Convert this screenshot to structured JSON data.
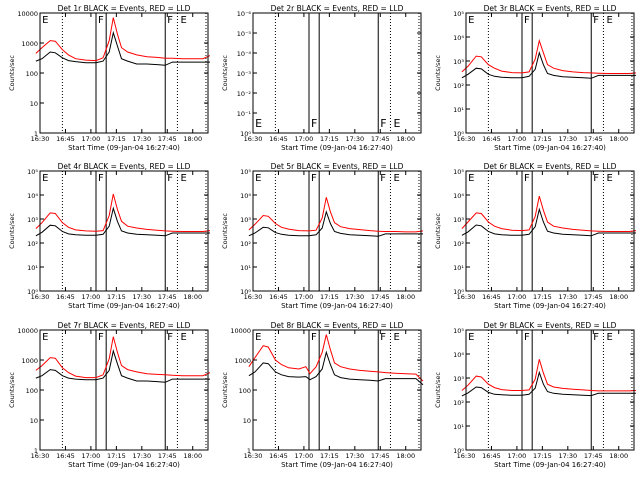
{
  "figure": {
    "xtick_labels": [
      "16:30",
      "16:45",
      "17:00",
      "17:15",
      "17:30",
      "17:45",
      "18:00"
    ],
    "xlabel": "Start Time (09-Jan-04 16:27:40)",
    "ylabel": "Counts/sec",
    "colors": {
      "events": "#000000",
      "lld": "#ff0000"
    },
    "markers": [
      {
        "label": "E",
        "time": 16.511
      },
      {
        "label": "F",
        "time": 17.06
      },
      {
        "label": "F",
        "time": 17.74
      },
      {
        "label": "E",
        "time": 17.87
      }
    ],
    "dotted_lines": [
      16.72,
      17.85,
      18.13
    ],
    "solid_lines": [
      17.05,
      17.15,
      17.73
    ]
  },
  "chart_data": [
    {
      "type": "line",
      "title": "Det 1r BLACK = Events, RED = LLD",
      "ytick_labels": [
        "1",
        "10",
        "100",
        "1000",
        "10000"
      ],
      "ylim": [
        1,
        10000
      ],
      "yscale": "log",
      "x": [
        16.46,
        16.52,
        16.6,
        16.65,
        16.72,
        16.78,
        16.85,
        16.95,
        17.05,
        17.12,
        17.18,
        17.22,
        17.26,
        17.3,
        17.36,
        17.45,
        17.55,
        17.65,
        17.73,
        17.8,
        17.9,
        18.0,
        18.1,
        18.17
      ],
      "series": [
        {
          "name": "LLD",
          "values": [
            450,
            700,
            1200,
            1150,
            600,
            400,
            300,
            270,
            260,
            320,
            1200,
            7000,
            2000,
            700,
            500,
            400,
            350,
            330,
            310,
            310,
            300,
            300,
            300,
            380
          ]
        },
        {
          "name": "Events",
          "values": [
            250,
            300,
            500,
            470,
            320,
            260,
            240,
            220,
            220,
            250,
            500,
            2200,
            800,
            300,
            250,
            200,
            200,
            190,
            180,
            230,
            230,
            230,
            230,
            230
          ]
        }
      ]
    },
    {
      "type": "line",
      "title": "Det 2r BLACK = Events, RED = LLD",
      "ytick_labels": [
        "10⁰",
        "10⁻¹",
        "10⁻²",
        "10⁻³",
        "10⁻⁴",
        "10⁻⁵",
        "10⁻⁶"
      ],
      "ylim": [
        1,
        1e-06
      ],
      "yscale": "log",
      "x": [],
      "series": []
    },
    {
      "type": "line",
      "title": "Det 3r BLACK = Events, RED = LLD",
      "ytick_labels": [
        "10⁰",
        "10¹",
        "10²",
        "10³",
        "10⁴",
        "10⁵"
      ],
      "ylim": [
        1,
        100000
      ],
      "yscale": "log",
      "x": [
        16.46,
        16.52,
        16.6,
        16.65,
        16.72,
        16.78,
        16.85,
        16.95,
        17.05,
        17.12,
        17.18,
        17.22,
        17.26,
        17.3,
        17.36,
        17.45,
        17.55,
        17.65,
        17.73,
        17.8,
        17.9,
        18.0,
        18.1,
        18.17
      ],
      "series": [
        {
          "name": "LLD",
          "values": [
            350,
            600,
            1600,
            1500,
            700,
            500,
            380,
            330,
            320,
            350,
            1200,
            7000,
            2200,
            700,
            500,
            400,
            350,
            330,
            320,
            310,
            300,
            300,
            300,
            320
          ]
        },
        {
          "name": "Events",
          "values": [
            200,
            280,
            500,
            470,
            280,
            230,
            210,
            200,
            200,
            230,
            450,
            2200,
            700,
            300,
            250,
            220,
            210,
            200,
            190,
            250,
            250,
            250,
            250,
            250
          ]
        }
      ]
    },
    {
      "type": "line",
      "title": "Det 4r BLACK = Events, RED = LLD",
      "ytick_labels": [
        "10⁰",
        "10¹",
        "10²",
        "10³",
        "10⁴",
        "10⁵"
      ],
      "ylim": [
        1,
        100000
      ],
      "yscale": "log",
      "x": [
        16.46,
        16.52,
        16.6,
        16.65,
        16.72,
        16.78,
        16.85,
        16.95,
        17.05,
        17.12,
        17.18,
        17.22,
        17.26,
        17.3,
        17.36,
        17.45,
        17.55,
        17.65,
        17.73,
        17.8,
        17.9,
        18.0,
        18.1,
        18.17
      ],
      "series": [
        {
          "name": "LLD",
          "values": [
            400,
            700,
            1800,
            1700,
            700,
            450,
            350,
            320,
            310,
            330,
            1400,
            11000,
            2500,
            800,
            500,
            420,
            370,
            340,
            320,
            310,
            300,
            300,
            300,
            330
          ]
        },
        {
          "name": "Events",
          "values": [
            200,
            280,
            550,
            520,
            300,
            240,
            220,
            210,
            210,
            230,
            500,
            2800,
            800,
            320,
            260,
            230,
            220,
            210,
            200,
            260,
            260,
            260,
            260,
            260
          ]
        }
      ]
    },
    {
      "type": "line",
      "title": "Det 5r BLACK = Events, RED = LLD",
      "ytick_labels": [
        "10⁰",
        "10¹",
        "10²",
        "10³",
        "10⁴",
        "10⁵"
      ],
      "ylim": [
        1,
        100000
      ],
      "yscale": "log",
      "x": [
        16.46,
        16.52,
        16.6,
        16.65,
        16.72,
        16.78,
        16.85,
        16.95,
        17.05,
        17.12,
        17.18,
        17.22,
        17.26,
        17.3,
        17.36,
        17.45,
        17.55,
        17.65,
        17.73,
        17.8,
        17.9,
        18.0,
        18.1,
        18.17
      ],
      "series": [
        {
          "name": "LLD",
          "values": [
            350,
            600,
            1400,
            1300,
            650,
            450,
            380,
            330,
            320,
            340,
            1100,
            8000,
            2000,
            700,
            480,
            400,
            360,
            330,
            310,
            300,
            300,
            290,
            290,
            320
          ]
        },
        {
          "name": "Events",
          "values": [
            200,
            260,
            450,
            430,
            270,
            230,
            210,
            200,
            200,
            220,
            420,
            2000,
            650,
            300,
            250,
            220,
            210,
            200,
            190,
            240,
            240,
            240,
            240,
            240
          ]
        }
      ]
    },
    {
      "type": "line",
      "title": "Det 6r BLACK = Events, RED = LLD",
      "ytick_labels": [
        "10⁰",
        "10¹",
        "10²",
        "10³",
        "10⁴",
        "10⁵"
      ],
      "ylim": [
        1,
        100000
      ],
      "yscale": "log",
      "x": [
        16.46,
        16.52,
        16.6,
        16.65,
        16.72,
        16.78,
        16.85,
        16.95,
        17.05,
        17.12,
        17.18,
        17.22,
        17.26,
        17.3,
        17.36,
        17.45,
        17.55,
        17.65,
        17.73,
        17.8,
        17.9,
        18.0,
        18.1,
        18.17
      ],
      "series": [
        {
          "name": "LLD",
          "values": [
            400,
            750,
            1800,
            1700,
            750,
            500,
            400,
            340,
            330,
            350,
            1300,
            9000,
            2300,
            750,
            500,
            420,
            370,
            340,
            320,
            310,
            300,
            300,
            300,
            330
          ]
        },
        {
          "name": "Events",
          "values": [
            210,
            290,
            560,
            520,
            300,
            240,
            220,
            210,
            210,
            230,
            480,
            2500,
            750,
            310,
            260,
            230,
            220,
            210,
            200,
            260,
            260,
            260,
            260,
            260
          ]
        }
      ]
    },
    {
      "type": "line",
      "title": "Det 7r BLACK = Events, RED = LLD",
      "ytick_labels": [
        "1",
        "10",
        "100",
        "1000",
        "10000"
      ],
      "ylim": [
        1,
        10000
      ],
      "yscale": "log",
      "x": [
        16.46,
        16.52,
        16.6,
        16.65,
        16.72,
        16.78,
        16.85,
        16.95,
        17.05,
        17.12,
        17.18,
        17.22,
        17.26,
        17.3,
        17.36,
        17.45,
        17.55,
        17.65,
        17.73,
        17.8,
        17.9,
        18.0,
        18.1,
        18.17
      ],
      "series": [
        {
          "name": "LLD",
          "values": [
            450,
            650,
            1200,
            1150,
            550,
            380,
            290,
            260,
            260,
            320,
            1100,
            6000,
            1800,
            650,
            480,
            400,
            350,
            330,
            320,
            310,
            300,
            300,
            300,
            380
          ]
        },
        {
          "name": "Events",
          "values": [
            250,
            300,
            480,
            450,
            300,
            250,
            230,
            220,
            220,
            250,
            450,
            2000,
            750,
            300,
            250,
            200,
            200,
            190,
            180,
            230,
            230,
            230,
            230,
            230
          ]
        }
      ]
    },
    {
      "type": "line",
      "title": "Det 8r BLACK = Events, RED = LLD",
      "ytick_labels": [
        "1",
        "10",
        "100",
        "1000",
        "10000"
      ],
      "ylim": [
        1,
        10000
      ],
      "yscale": "log",
      "x": [
        16.46,
        16.52,
        16.6,
        16.65,
        16.72,
        16.78,
        16.85,
        16.95,
        17.02,
        17.06,
        17.12,
        17.18,
        17.22,
        17.26,
        17.3,
        17.36,
        17.45,
        17.55,
        17.65,
        17.73,
        17.8,
        17.9,
        18.0,
        18.1,
        18.17
      ],
      "series": [
        {
          "name": "LLD",
          "values": [
            600,
            1200,
            3000,
            2700,
            1000,
            700,
            550,
            500,
            600,
            350,
            600,
            1800,
            7000,
            2200,
            800,
            600,
            500,
            450,
            420,
            400,
            380,
            360,
            350,
            340,
            200
          ]
        },
        {
          "name": "Events",
          "values": [
            300,
            400,
            800,
            750,
            400,
            320,
            280,
            270,
            280,
            220,
            280,
            500,
            1800,
            700,
            320,
            260,
            230,
            220,
            210,
            200,
            240,
            240,
            240,
            240,
            150
          ]
        }
      ]
    },
    {
      "type": "line",
      "title": "Det 9r BLACK = Events, RED = LLD",
      "ytick_labels": [
        "10⁰",
        "10¹",
        "10²",
        "10³",
        "10⁴",
        "10⁵"
      ],
      "ylim": [
        1,
        100000
      ],
      "yscale": "log",
      "x": [
        16.46,
        16.52,
        16.6,
        16.65,
        16.72,
        16.78,
        16.85,
        16.95,
        17.05,
        17.12,
        17.18,
        17.22,
        17.26,
        17.3,
        17.36,
        17.45,
        17.55,
        17.65,
        17.73,
        17.8,
        17.9,
        18.0,
        18.1,
        18.17
      ],
      "series": [
        {
          "name": "LLD",
          "values": [
            300,
            500,
            1200,
            1100,
            550,
            400,
            330,
            300,
            300,
            320,
            900,
            6000,
            1600,
            550,
            420,
            370,
            340,
            320,
            300,
            290,
            290,
            290,
            290,
            300
          ]
        },
        {
          "name": "Events",
          "values": [
            180,
            240,
            420,
            400,
            250,
            210,
            200,
            190,
            190,
            210,
            380,
            1700,
            550,
            270,
            230,
            210,
            200,
            190,
            185,
            230,
            230,
            230,
            230,
            230
          ]
        }
      ]
    }
  ]
}
